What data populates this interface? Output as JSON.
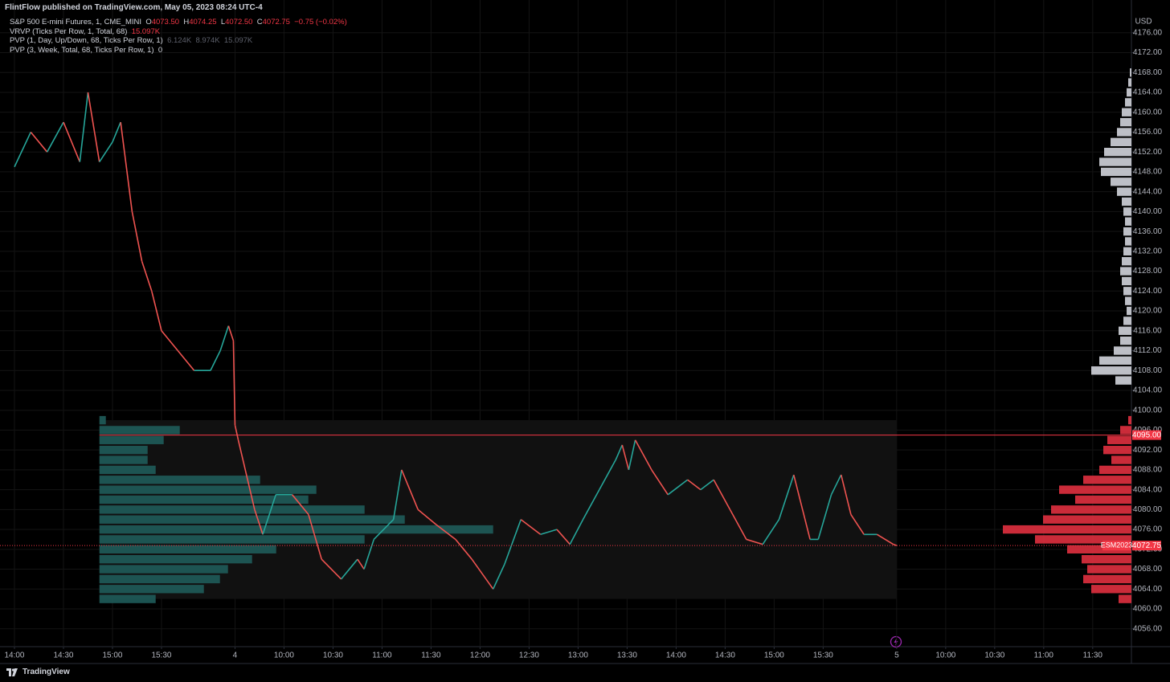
{
  "header": {
    "publisher": "FlintFlow published on TradingView.com, May 05, 2023 08:24 UTC-4"
  },
  "legend": {
    "symbol": "S&P 500 E-mini Futures, 1, CME_MINI",
    "o_label": "O",
    "o_value": "4073.50",
    "h_label": "H",
    "h_value": "4074.25",
    "l_label": "L",
    "l_value": "4072.50",
    "c_label": "C",
    "c_value": "4072.75",
    "change": "−0.75 (−0.02%)",
    "vrvp": "VRVP (Ticks Per Row, 1, Total, 68)",
    "vrvp_value": "15.097K",
    "pvp_day": "PVP (1, Day, Up/Down, 68, Ticks Per Row, 1)",
    "pvp_day_up": "6.124K",
    "pvp_day_down": "8.974K",
    "pvp_day_total": "15.097K",
    "pvp_week": "PVP (3, Week, Total, 68, Ticks Per Row, 1)",
    "pvp_week_value": "0"
  },
  "footer": {
    "brand": "TradingView"
  },
  "chart_data": {
    "type": "line",
    "currency": "USD",
    "grid": true,
    "xlim": [
      -8.85,
      683.7
    ],
    "ylim": [
      4052.4,
      4182.6
    ],
    "xticks": [
      {
        "value": 0,
        "label": "14:00"
      },
      {
        "value": 30,
        "label": "14:30"
      },
      {
        "value": 60,
        "label": "15:00"
      },
      {
        "value": 90,
        "label": "15:30"
      },
      {
        "value": 135,
        "label": "4"
      },
      {
        "value": 165,
        "label": "10:00"
      },
      {
        "value": 195,
        "label": "10:30"
      },
      {
        "value": 225,
        "label": "11:00"
      },
      {
        "value": 255,
        "label": "11:30"
      },
      {
        "value": 285,
        "label": "12:00"
      },
      {
        "value": 315,
        "label": "12:30"
      },
      {
        "value": 345,
        "label": "13:00"
      },
      {
        "value": 375,
        "label": "13:30"
      },
      {
        "value": 405,
        "label": "14:00"
      },
      {
        "value": 435,
        "label": "14:30"
      },
      {
        "value": 465,
        "label": "15:00"
      },
      {
        "value": 495,
        "label": "15:30"
      },
      {
        "value": 540,
        "label": "5"
      },
      {
        "value": 570,
        "label": "10:00"
      },
      {
        "value": 600,
        "label": "10:30"
      },
      {
        "value": 630,
        "label": "11:00"
      },
      {
        "value": 660,
        "label": "11:30"
      }
    ],
    "yticks": [
      {
        "value": 4056,
        "label": "4056.00"
      },
      {
        "value": 4060,
        "label": "4060.00"
      },
      {
        "value": 4064,
        "label": "4064.00"
      },
      {
        "value": 4068,
        "label": "4068.00"
      },
      {
        "value": 4072,
        "label": "4072.00"
      },
      {
        "value": 4076,
        "label": "4076.00"
      },
      {
        "value": 4080,
        "label": "4080.00"
      },
      {
        "value": 4084,
        "label": "4084.00"
      },
      {
        "value": 4088,
        "label": "4088.00"
      },
      {
        "value": 4092,
        "label": "4092.00"
      },
      {
        "value": 4096,
        "label": "4096.00"
      },
      {
        "value": 4100,
        "label": "4100.00"
      },
      {
        "value": 4104,
        "label": "4104.00"
      },
      {
        "value": 4108,
        "label": "4108.00"
      },
      {
        "value": 4112,
        "label": "4112.00"
      },
      {
        "value": 4116,
        "label": "4116.00"
      },
      {
        "value": 4120,
        "label": "4120.00"
      },
      {
        "value": 4124,
        "label": "4124.00"
      },
      {
        "value": 4128,
        "label": "4128.00"
      },
      {
        "value": 4132,
        "label": "4132.00"
      },
      {
        "value": 4136,
        "label": "4136.00"
      },
      {
        "value": 4140,
        "label": "4140.00"
      },
      {
        "value": 4144,
        "label": "4144.00"
      },
      {
        "value": 4148,
        "label": "4148.00"
      },
      {
        "value": 4152,
        "label": "4152.00"
      },
      {
        "value": 4156,
        "label": "4156.00"
      },
      {
        "value": 4160,
        "label": "4160.00"
      },
      {
        "value": 4164,
        "label": "4164.00"
      },
      {
        "value": 4168,
        "label": "4168.00"
      },
      {
        "value": 4172,
        "label": "4172.00"
      },
      {
        "value": 4176,
        "label": "4176.00"
      }
    ],
    "up_color": "#26a69a",
    "down_color": "#ef5350",
    "x": [
      0,
      10,
      20,
      30,
      40,
      45,
      52,
      60,
      65,
      72,
      78,
      84,
      90,
      100,
      110,
      120,
      126,
      131,
      134,
      135,
      137,
      147,
      152,
      160,
      170,
      180,
      188,
      200,
      210,
      214,
      220,
      232,
      237,
      247,
      258,
      270,
      280,
      293,
      300,
      310,
      322,
      332,
      340,
      348,
      358,
      368,
      372,
      376,
      380,
      390,
      400,
      412,
      420,
      428,
      438,
      448,
      458,
      468,
      477,
      487,
      492,
      500,
      506,
      512,
      520,
      528,
      538,
      540
    ],
    "values": [
      4149,
      4156,
      4152,
      4158,
      4150,
      4164,
      4150,
      4154,
      4158,
      4140,
      4130,
      4124,
      4116,
      4112,
      4108,
      4108,
      4112,
      4117,
      4114,
      4097,
      4094,
      4080,
      4075,
      4083,
      4083,
      4079,
      4070,
      4066,
      4070,
      4068,
      4074,
      4078,
      4088,
      4080,
      4077,
      4074,
      4070,
      4064,
      4069,
      4078,
      4075,
      4076,
      4073,
      4078,
      4084,
      4090,
      4093,
      4088,
      4094,
      4088,
      4083,
      4086,
      4084,
      4086,
      4080,
      4074,
      4073,
      4078,
      4087,
      4074,
      4074,
      4083,
      4087,
      4079,
      4075,
      4075,
      4073,
      4072.75
    ],
    "profiles": [
      {
        "anchor": "right",
        "color": "#d1d4dc",
        "prices": [
          4106,
          4108,
          4110,
          4112,
          4114,
          4116,
          4118,
          4120,
          4122,
          4124,
          4126,
          4128,
          4130,
          4132,
          4134,
          4136,
          4138,
          4140,
          4142,
          4144,
          4146,
          4148,
          4150,
          4152,
          4154,
          4156,
          4158,
          4160,
          4162,
          4164,
          4166,
          4168
        ],
        "volumes": [
          20,
          50,
          40,
          22,
          14,
          16,
          10,
          6,
          8,
          10,
          12,
          14,
          12,
          10,
          8,
          10,
          8,
          10,
          12,
          18,
          26,
          38,
          40,
          34,
          26,
          18,
          14,
          12,
          8,
          6,
          4,
          2
        ]
      },
      {
        "anchor": "right",
        "color": "#e0303f",
        "prices": [
          4062,
          4064,
          4066,
          4068,
          4070,
          4072,
          4074,
          4076,
          4078,
          4080,
          4082,
          4084,
          4086,
          4088,
          4090,
          4092,
          4094,
          4096,
          4098
        ],
        "volumes": [
          16,
          50,
          60,
          55,
          62,
          80,
          120,
          160,
          110,
          100,
          70,
          90,
          60,
          40,
          25,
          35,
          30,
          14,
          4
        ]
      },
      {
        "anchor": "session",
        "color": "#1f5c5a",
        "prices": [
          4062,
          4064,
          4066,
          4068,
          4070,
          4072,
          4074,
          4076,
          4078,
          4080,
          4082,
          4084,
          4086,
          4088,
          4090,
          4092,
          4094,
          4096,
          4098
        ],
        "volumes": [
          70,
          130,
          150,
          160,
          190,
          220,
          330,
          490,
          380,
          330,
          260,
          270,
          200,
          70,
          60,
          60,
          80,
          100,
          8
        ]
      }
    ],
    "level": {
      "value": 4095,
      "label": "4095.00",
      "color": "#f23645"
    },
    "last_price": {
      "symbol": "ESM2023",
      "value": 4072.75,
      "color": "#f23645"
    }
  }
}
